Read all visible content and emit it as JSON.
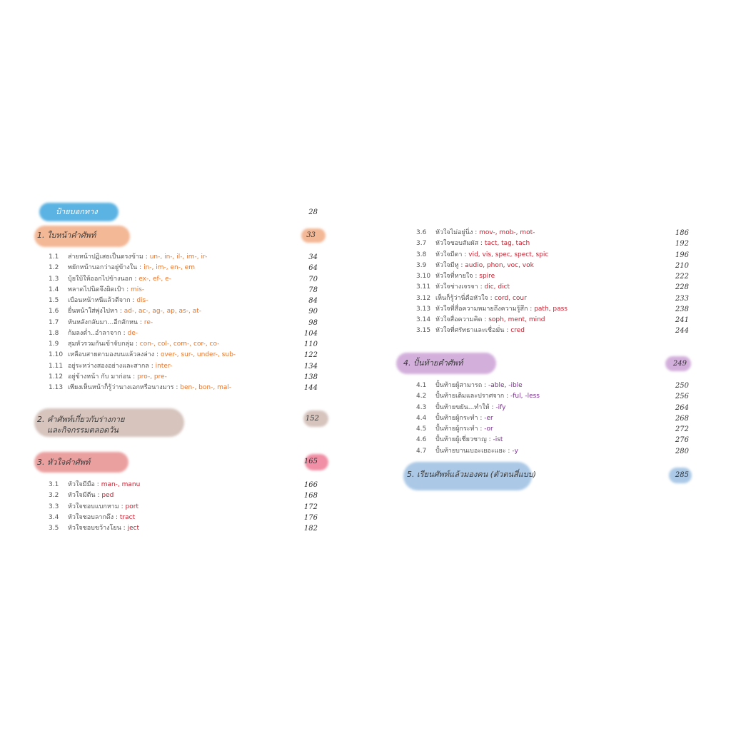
{
  "colors": {
    "s1": "#e8742a",
    "s3": "#c8202f",
    "s4": "#7a2f8f"
  },
  "guide": {
    "title": "ป้ายบอกทาง",
    "page": "28"
  },
  "sections": [
    {
      "title": "1. ใบหน้าคำศัพท์",
      "page": "33",
      "items": [
        {
          "num": "1.1",
          "title": "ส่ายหน้าปฏิเสธเป็นตรงข้าม : ",
          "suffix": "un-, in-, il-, im-, ir-",
          "page": "34"
        },
        {
          "num": "1.2",
          "title": "พยักหน้าบอกว่าอยู่ข้างใน : ",
          "suffix": "in-, im-, en-, em",
          "page": "64"
        },
        {
          "num": "1.3",
          "title": "บุ้ยใบ้ให้ออกไปข้างนอก : ",
          "suffix": "ex-, ef-, e-",
          "page": "70"
        },
        {
          "num": "1.4",
          "title": "พลาดไปนิดจึงผิดเป้า : ",
          "suffix": "mis-",
          "page": "78"
        },
        {
          "num": "1.5",
          "title": "เบือนหน้าหนีแล้วตีจาก : ",
          "suffix": "dis-",
          "page": "84"
        },
        {
          "num": "1.6",
          "title": "ยื่นหน้าใส่พุ่งไปหา : ",
          "suffix": "ad-, ac-, ag-, ap, as-, at-",
          "page": "90"
        },
        {
          "num": "1.7",
          "title": "หันหลังกลับมา...อีกสักหน : ",
          "suffix": "re-",
          "page": "98"
        },
        {
          "num": "1.8",
          "title": "ก้มลงต่ำ..อำลาจาก : ",
          "suffix": "de-",
          "page": "104"
        },
        {
          "num": "1.9",
          "title": "สุมหัวรวมกันเข้าจับกลุ่ม : ",
          "suffix": "con-, col-, com-, cor-, co-",
          "page": "110"
        },
        {
          "num": "1.10",
          "title": "เหลือบสายตามองบนแล้วลงล่าง : ",
          "suffix": "over-, sur-, under-, sub-",
          "page": "122"
        },
        {
          "num": "1.11",
          "title": "อยู่ระหว่างสองอย่างและสากล : ",
          "suffix": "inter-",
          "page": "134"
        },
        {
          "num": "1.12",
          "title": "อยู่ข้างหน้า กับ มาก่อน : ",
          "suffix": "pro-, pre-",
          "page": "138"
        },
        {
          "num": "1.13",
          "title": "เพียงเห็นหน้าก็รู้ว่านางเอกหรือนางมาร : ",
          "suffix": "ben-, bon-, mal-",
          "page": "144"
        }
      ]
    },
    {
      "title": "2. คำศัพท์เกี่ยวกับร่างกาย",
      "title2": "และกิจกรรมตลอดวัน",
      "page": "152",
      "items": []
    },
    {
      "title": "3. หัวใจคำศัพท์",
      "page": "165",
      "items": [
        {
          "num": "3.1",
          "title": "หัวใจมีมือ : ",
          "suffix": "man-, manu",
          "page": "166"
        },
        {
          "num": "3.2",
          "title": "หัวใจมีตีน : ",
          "suffix": "ped",
          "page": "168"
        },
        {
          "num": "3.3",
          "title": "หัวใจชอบแบกหาม : ",
          "suffix": "port",
          "page": "172"
        },
        {
          "num": "3.4",
          "title": "หัวใจชอบลากดึง : ",
          "suffix": "tract",
          "page": "176"
        },
        {
          "num": "3.5",
          "title": "หัวใจชอบขว้างโยน : ",
          "suffix": "ject",
          "page": "182"
        },
        {
          "num": "3.6",
          "title": "หัวใจไม่อยู่นิ่ง : ",
          "suffix": "mov-, mob-, mot-",
          "page": "186"
        },
        {
          "num": "3.7",
          "title": "หัวใจชอบสัมผัส : ",
          "suffix": "tact, tag, tach",
          "page": "192"
        },
        {
          "num": "3.8",
          "title": "หัวใจมีตา : ",
          "suffix": "vid, vis, spec, spect, spic",
          "page": "196"
        },
        {
          "num": "3.9",
          "title": "หัวใจมีหู : ",
          "suffix": "audio, phon, voc, vok",
          "page": "210"
        },
        {
          "num": "3.10",
          "title": "หัวใจที่หายใจ : ",
          "suffix": "spire",
          "page": "222"
        },
        {
          "num": "3.11",
          "title": "หัวใจช่างเจรจา : ",
          "suffix": "dic, dict",
          "page": "228"
        },
        {
          "num": "3.12",
          "title": "เห็นก็รู้ว่านี่คือหัวใจ : ",
          "suffix": "cord, cour",
          "page": "233"
        },
        {
          "num": "3.13",
          "title": "หัวใจที่สื่อความหมายถึงความรู้สึก : ",
          "suffix": "path, pass",
          "page": "238"
        },
        {
          "num": "3.14",
          "title": "หัวใจสื่อความคิด : ",
          "suffix": "soph, ment, mind",
          "page": "241"
        },
        {
          "num": "3.15",
          "title": "หัวใจที่ศรัทธาและเชื่อมั่น : ",
          "suffix": "cred",
          "page": "244"
        }
      ]
    },
    {
      "title": "4. ปั้นท้ายคำศัพท์",
      "page": "249",
      "items": [
        {
          "num": "4.1",
          "title": "ปั้นท้ายผู้สามารถ : ",
          "suffix": "-able, -ible",
          "page": "250"
        },
        {
          "num": "4.2",
          "title": "ปั้นท้ายเติมและปราศจาก : ",
          "suffix": "-ful, -less",
          "page": "256"
        },
        {
          "num": "4.3",
          "title": "ปั้นท้ายขยัน...ทำให้ : ",
          "suffix": "-ify",
          "page": "264"
        },
        {
          "num": "4.4",
          "title": "ปั้นท้ายผู้กระทำ : ",
          "suffix": "-er",
          "page": "268"
        },
        {
          "num": "4.5",
          "title": "ปั้นท้ายผู้กระทำ : ",
          "suffix": "-or",
          "page": "272"
        },
        {
          "num": "4.6",
          "title": "ปั้นท้ายผู้เชี่ยวชาญ : ",
          "suffix": "-ist",
          "page": "276"
        },
        {
          "num": "4.7",
          "title": "ปั้นท้ายบานเบอะเยอะแยะ : ",
          "suffix": "-y",
          "page": "280"
        }
      ]
    },
    {
      "title": "5. เรียนศัพท์แล้วมองคน (ตัวตนสี่แบบ)",
      "page": "285",
      "items": []
    }
  ]
}
